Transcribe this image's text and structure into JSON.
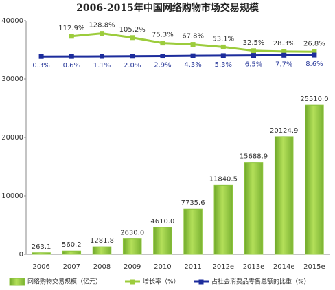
{
  "chart_data": {
    "type": "bar",
    "title": "2006-2015年中国网络购物市场交易规模",
    "categories": [
      "2006",
      "2007",
      "2008",
      "2009",
      "2010",
      "2011",
      "2012e",
      "2013e",
      "2014e",
      "2015e"
    ],
    "ylim": [
      0,
      40000
    ],
    "yticks": [
      0,
      10000,
      20000,
      30000,
      40000
    ],
    "y2lim": [
      -1100,
      200
    ],
    "grid": false,
    "legend": "bottom",
    "series": [
      {
        "name": "网络购物交易规模（亿元）",
        "type": "bar",
        "color": "#8cc43c",
        "values": [
          263.1,
          560.2,
          1281.8,
          2630,
          4610,
          7735.6,
          11840.5,
          15688.9,
          20124.9,
          25510
        ],
        "value_labels": [
          "263.1",
          "560.2",
          "1281.8",
          "2630.0",
          "4610.0",
          "7735.6",
          "11840.5",
          "15688.9",
          "20124.9",
          "25510.0"
        ]
      },
      {
        "name": "增长率（%）",
        "type": "line",
        "axis": "y2",
        "color": "#9ccc3c",
        "values": [
          null,
          112.9,
          128.8,
          105.2,
          75.3,
          67.8,
          53.1,
          32.5,
          28.3,
          26.8
        ],
        "value_labels": [
          null,
          "112.9%",
          "128.8%",
          "105.2%",
          "75.3%",
          "67.8%",
          "53.1%",
          "32.5%",
          "28.3%",
          "26.8%"
        ]
      },
      {
        "name": "占社会消费品零售总额的比重（%）",
        "type": "line",
        "axis": "y2",
        "color": "#1c2c9c",
        "values": [
          0.3,
          0.6,
          1.1,
          2.0,
          2.9,
          4.3,
          5.3,
          6.5,
          7.7,
          8.6
        ],
        "value_labels": [
          "0.3%",
          "0.6%",
          "1.1%",
          "2.0%",
          "2.9%",
          "4.3%",
          "5.3%",
          "6.5%",
          "7.7%",
          "8.6%"
        ]
      }
    ]
  }
}
